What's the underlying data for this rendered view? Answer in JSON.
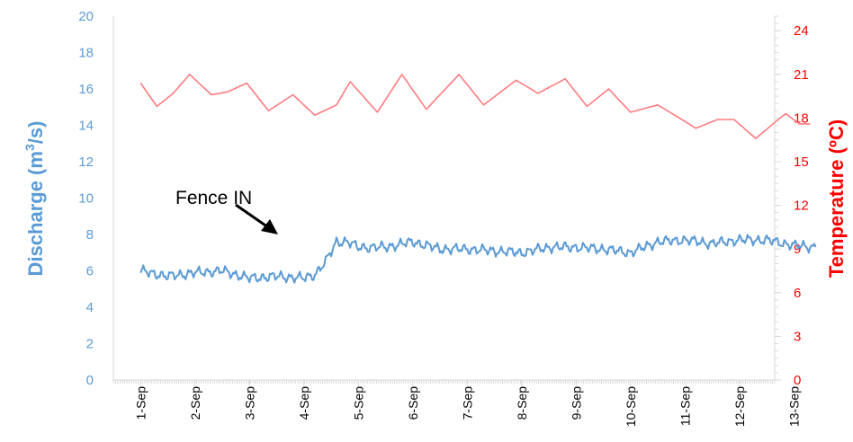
{
  "chart_data": {
    "type": "line",
    "xlabel": "",
    "x_categories": [
      "1-Sep",
      "2-Sep",
      "3-Sep",
      "4-Sep",
      "5-Sep",
      "6-Sep",
      "7-Sep",
      "8-Sep",
      "9-Sep",
      "10-Sep",
      "11-Sep",
      "12-Sep",
      "13-Sep"
    ],
    "ylabel_left_prefix": "Discharge (m",
    "ylabel_left_sup": "3",
    "ylabel_left_suffix": "/s)",
    "ylabel_right": "Temperature (ºC)",
    "y_left_lim": [
      0,
      20
    ],
    "y_left_ticks": [
      "0",
      "2",
      "4",
      "6",
      "8",
      "10",
      "12",
      "14",
      "16",
      "18",
      "20"
    ],
    "y_right_lim": [
      0,
      25
    ],
    "y_right_ticks": [
      "0",
      "3",
      "6",
      "9",
      "12",
      "15",
      "18",
      "21",
      "24"
    ],
    "annotation": "Fence IN",
    "colors": {
      "discharge": "#5b9bd5",
      "temperature": "#ff7c80"
    },
    "series": [
      {
        "axis": "left",
        "values_by_day": [
          [
            1.0,
            6.0
          ],
          [
            1.5,
            5.7
          ],
          [
            2.0,
            5.9
          ],
          [
            2.5,
            6.0
          ],
          [
            3.0,
            5.6
          ],
          [
            3.5,
            5.7
          ],
          [
            4.0,
            5.6
          ],
          [
            4.2,
            5.8
          ],
          [
            4.4,
            6.5
          ],
          [
            4.6,
            7.6
          ],
          [
            4.8,
            7.6
          ],
          [
            5.0,
            7.3
          ],
          [
            5.5,
            7.3
          ],
          [
            6.0,
            7.6
          ],
          [
            6.5,
            7.2
          ],
          [
            7.0,
            7.2
          ],
          [
            7.5,
            7.1
          ],
          [
            8.0,
            7.0
          ],
          [
            8.5,
            7.3
          ],
          [
            9.0,
            7.3
          ],
          [
            9.5,
            7.2
          ],
          [
            10.0,
            7.0
          ],
          [
            10.5,
            7.6
          ],
          [
            11.0,
            7.7
          ],
          [
            11.5,
            7.5
          ],
          [
            12.0,
            7.7
          ],
          [
            12.5,
            7.7
          ],
          [
            13.0,
            7.4
          ],
          [
            13.4,
            7.3
          ]
        ]
      },
      {
        "axis": "right",
        "values_by_day": [
          [
            1.0,
            20.4
          ],
          [
            1.3,
            18.8
          ],
          [
            1.6,
            19.7
          ],
          [
            1.9,
            21.0
          ],
          [
            2.3,
            19.6
          ],
          [
            2.6,
            19.8
          ],
          [
            2.95,
            20.4
          ],
          [
            3.35,
            18.5
          ],
          [
            3.8,
            19.6
          ],
          [
            4.2,
            18.2
          ],
          [
            4.6,
            18.9
          ],
          [
            4.85,
            20.5
          ],
          [
            5.35,
            18.4
          ],
          [
            5.8,
            21.0
          ],
          [
            6.25,
            18.6
          ],
          [
            6.85,
            21.0
          ],
          [
            7.3,
            18.9
          ],
          [
            7.9,
            20.6
          ],
          [
            8.3,
            19.7
          ],
          [
            8.8,
            20.7
          ],
          [
            9.2,
            18.8
          ],
          [
            9.6,
            20.0
          ],
          [
            10.0,
            18.4
          ],
          [
            10.5,
            18.9
          ],
          [
            10.9,
            18.0
          ],
          [
            11.2,
            17.3
          ],
          [
            11.6,
            17.9
          ],
          [
            11.9,
            17.9
          ],
          [
            12.3,
            16.6
          ],
          [
            12.65,
            17.7
          ],
          [
            12.85,
            18.3
          ],
          [
            13.1,
            17.6
          ],
          [
            13.3,
            17.6
          ]
        ]
      }
    ]
  }
}
